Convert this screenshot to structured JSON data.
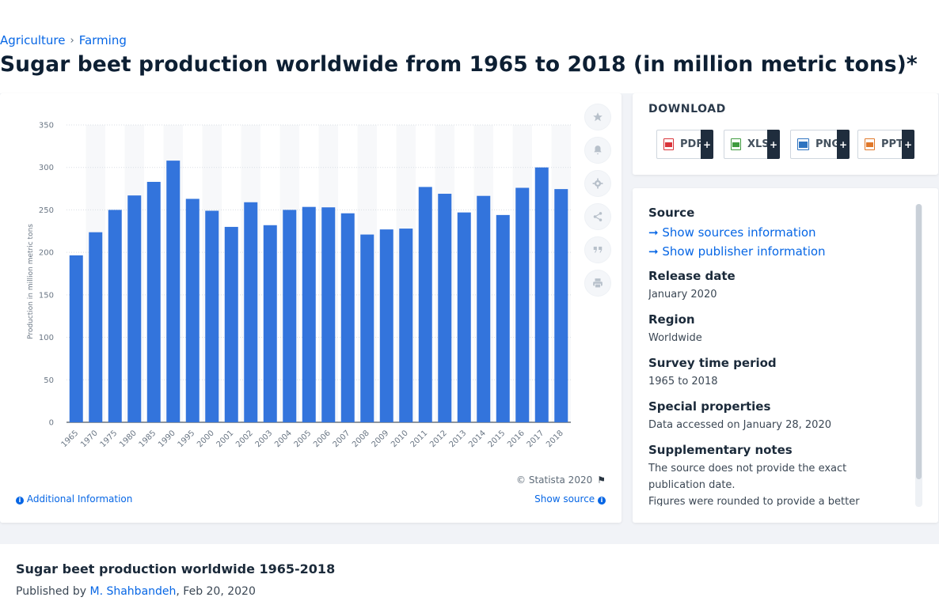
{
  "breadcrumb": {
    "items": [
      "Agriculture",
      "Farming"
    ],
    "separator": "›"
  },
  "page": {
    "title": "Sugar beet production worldwide from 1965 to 2018 (in million metric tons)*"
  },
  "toolbar": {
    "icons": [
      "star-icon",
      "bell-icon",
      "gear-icon",
      "share-icon",
      "quote-icon",
      "print-icon"
    ]
  },
  "chart_data": {
    "type": "bar",
    "categories": [
      "1965",
      "1970",
      "1975",
      "1980",
      "1985",
      "1990",
      "1995",
      "2000",
      "2001",
      "2002",
      "2003",
      "2004",
      "2005",
      "2006",
      "2007",
      "2008",
      "2009",
      "2010",
      "2011",
      "2012",
      "2013",
      "2014",
      "2015",
      "2016",
      "2017",
      "2018"
    ],
    "values": [
      196.5,
      223.7,
      250.0,
      267.0,
      283.0,
      308.0,
      263.0,
      249.0,
      230.0,
      259.0,
      232.0,
      250.0,
      253.5,
      253.0,
      246.0,
      221.0,
      227.0,
      228.0,
      277.0,
      269.0,
      247.0,
      266.5,
      244.0,
      276.0,
      300.0,
      274.5
    ],
    "title": "",
    "xlabel": "",
    "ylabel": "Production in million metric tons",
    "ylim": [
      0,
      350
    ],
    "yticks": [
      0,
      50,
      100,
      150,
      200,
      250,
      300,
      350
    ],
    "grid": true,
    "bar_color": "#3374dc"
  },
  "chart_footer": {
    "copyright": "© Statista 2020",
    "additional_info": "Additional Information",
    "show_source": "Show source"
  },
  "download": {
    "title": "DOWNLOAD",
    "formats": [
      {
        "label": "PDF",
        "color": "#d9343a"
      },
      {
        "label": "XLS",
        "color": "#3f9b3f"
      },
      {
        "label": "PNG",
        "color": "#2f74c0"
      },
      {
        "label": "PPT",
        "color": "#e0782a"
      }
    ],
    "plus": "+"
  },
  "meta": {
    "source_heading": "Source",
    "show_sources": "Show sources information",
    "show_publisher": "Show publisher information",
    "release_heading": "Release date",
    "release_value": "January 2020",
    "region_heading": "Region",
    "region_value": "Worldwide",
    "survey_heading": "Survey time period",
    "survey_value": "1965 to 2018",
    "special_heading": "Special properties",
    "special_value": "Data accessed on January 28, 2020",
    "notes_heading": "Supplementary notes",
    "notes_value_1": "The source does not provide the exact publication date.",
    "notes_value_2": "Figures were rounded to provide a better"
  },
  "footer": {
    "title": "Sugar beet production worldwide 1965-2018",
    "published_by": "Published by",
    "author": "M. Shahbandeh",
    "date": ", Feb 20, 2020"
  }
}
